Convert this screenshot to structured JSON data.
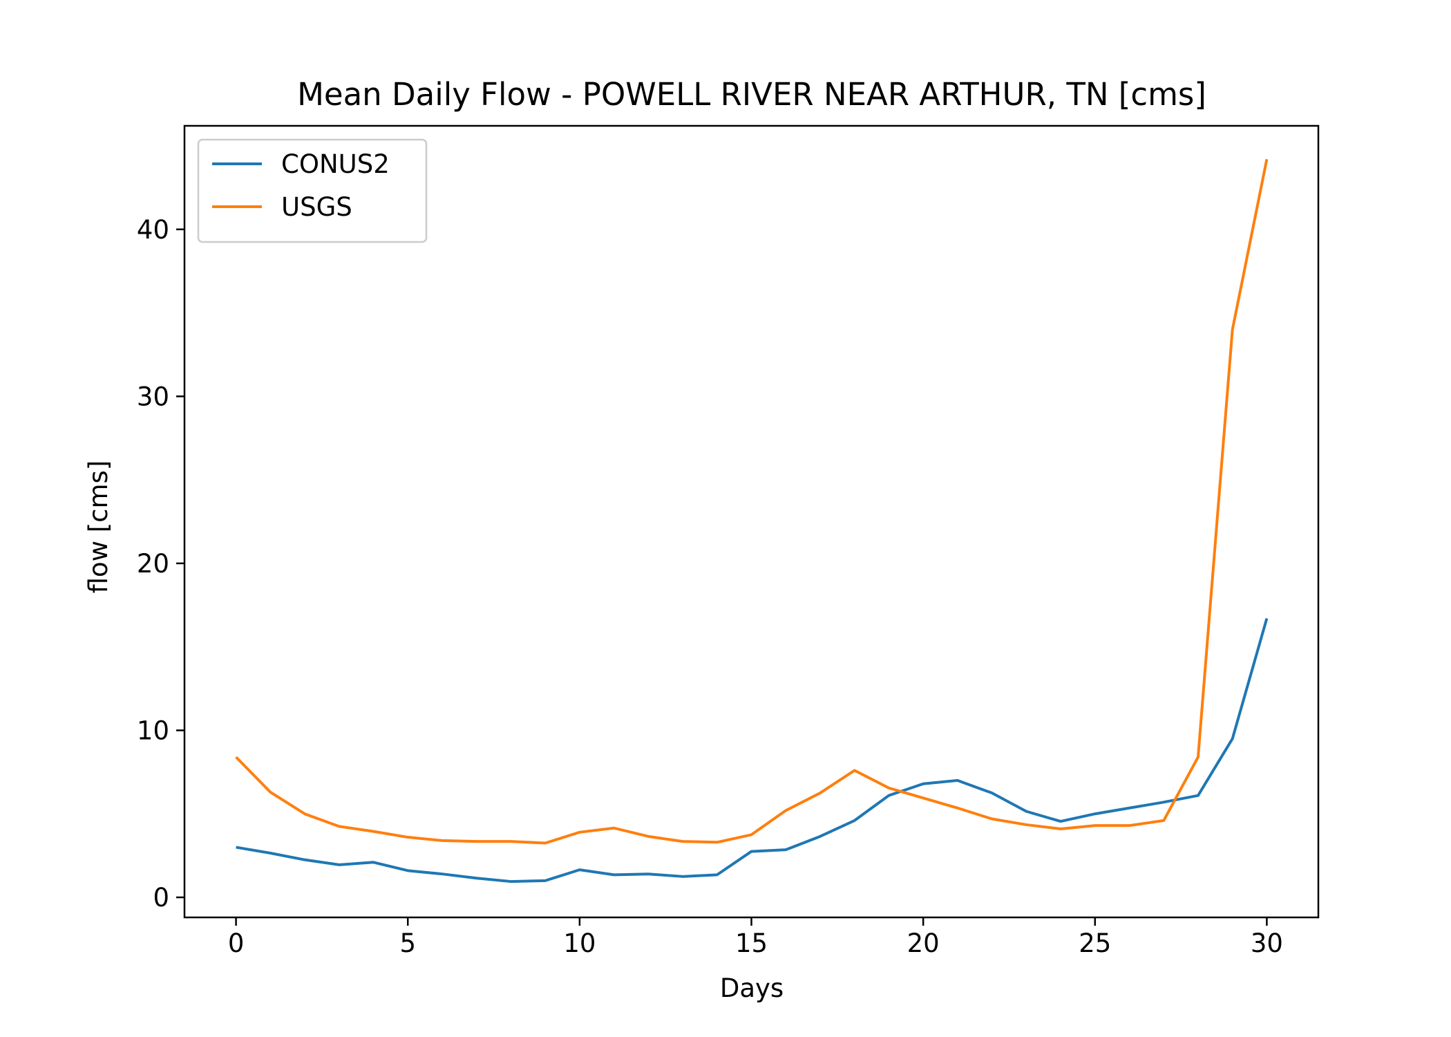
{
  "chart_data": {
    "type": "line",
    "title": "Mean Daily Flow - POWELL RIVER NEAR ARTHUR, TN [cms]",
    "xlabel": "Days",
    "ylabel": "flow [cms]",
    "xlim": [
      -1.5,
      31.5
    ],
    "ylim": [
      -1.2,
      46.2
    ],
    "xticks": [
      0,
      5,
      10,
      15,
      20,
      25,
      30
    ],
    "yticks": [
      0,
      10,
      20,
      30,
      40
    ],
    "grid": false,
    "legend_position": "upper-left",
    "x": [
      0,
      1,
      2,
      3,
      4,
      5,
      6,
      7,
      8,
      9,
      10,
      11,
      12,
      13,
      14,
      15,
      16,
      17,
      18,
      19,
      20,
      21,
      22,
      23,
      24,
      25,
      26,
      27,
      28,
      29,
      30
    ],
    "series": [
      {
        "name": "CONUS2",
        "color": "#1f77b4",
        "values": [
          3.0,
          2.65,
          2.25,
          1.95,
          2.1,
          1.6,
          1.4,
          1.15,
          0.95,
          1.0,
          1.65,
          1.35,
          1.4,
          1.25,
          1.35,
          2.75,
          2.85,
          3.65,
          4.6,
          6.1,
          6.8,
          7.0,
          6.25,
          5.15,
          4.55,
          5.0,
          5.35,
          5.7,
          6.1,
          9.5,
          16.7
        ]
      },
      {
        "name": "USGS",
        "color": "#ff7f0e",
        "values": [
          8.4,
          6.3,
          5.0,
          4.25,
          3.95,
          3.6,
          3.4,
          3.35,
          3.35,
          3.25,
          3.9,
          4.15,
          3.65,
          3.35,
          3.3,
          3.75,
          5.2,
          6.25,
          7.6,
          6.55,
          5.95,
          5.35,
          4.7,
          4.35,
          4.1,
          4.3,
          4.3,
          4.6,
          8.4,
          34.0,
          44.2
        ]
      }
    ]
  }
}
